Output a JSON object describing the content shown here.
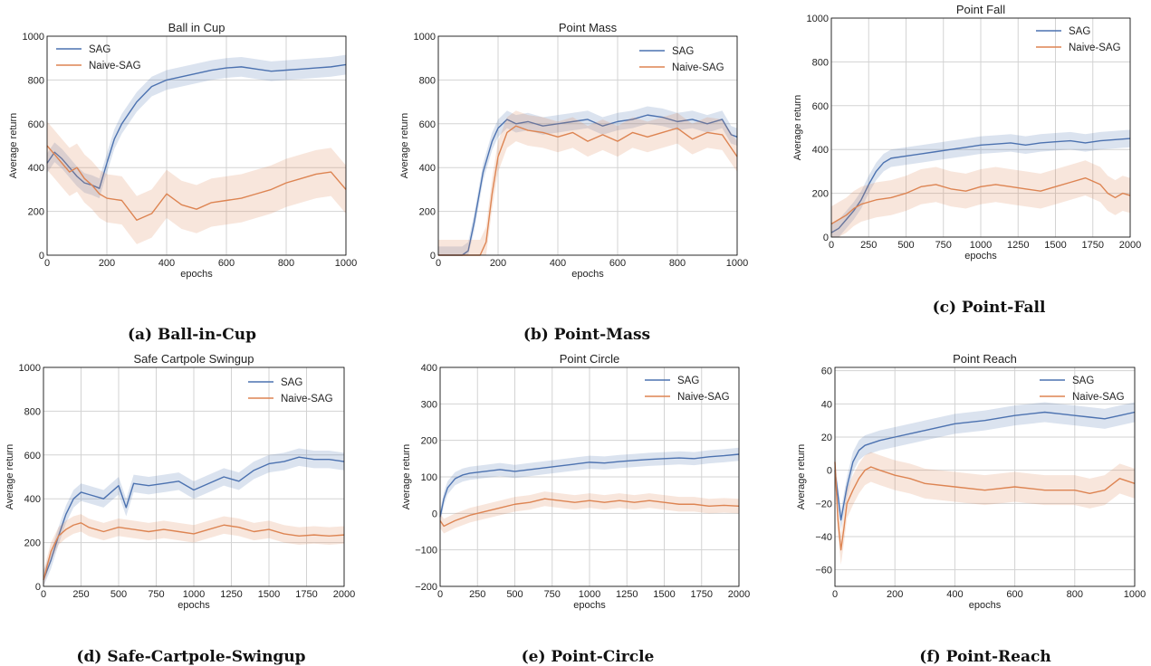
{
  "colors": {
    "sag": "#4c72b0",
    "naive_sag": "#dd8452"
  },
  "captions": [
    "(a) Ball-in-Cup",
    "(b) Point-Mass",
    "(c) Point-Fall",
    "(d) Safe-Cartpole-Swingup",
    "(e) Point-Circle",
    "(f) Point-Reach"
  ],
  "chart_data": [
    {
      "type": "line",
      "title": "Ball in Cup",
      "xlabel": "epochs",
      "ylabel": "Average return",
      "xlim": [
        0,
        1000
      ],
      "ylim": [
        0,
        1000
      ],
      "xticks": [
        0,
        200,
        400,
        600,
        800,
        1000
      ],
      "yticks": [
        0,
        200,
        400,
        600,
        800,
        1000
      ],
      "grid": true,
      "legend": "top-left",
      "series": [
        {
          "name": "SAG",
          "band": 45,
          "x": [
            0,
            25,
            50,
            75,
            100,
            125,
            150,
            175,
            200,
            225,
            250,
            275,
            300,
            350,
            400,
            450,
            500,
            550,
            600,
            650,
            700,
            750,
            800,
            850,
            900,
            950,
            1000
          ],
          "y": [
            420,
            470,
            440,
            400,
            360,
            330,
            320,
            305,
            420,
            530,
            600,
            650,
            700,
            770,
            800,
            815,
            830,
            845,
            855,
            860,
            850,
            840,
            845,
            850,
            855,
            860,
            870
          ]
        },
        {
          "name": "Naive-SAG",
          "band": 110,
          "x": [
            0,
            25,
            50,
            75,
            100,
            125,
            150,
            175,
            200,
            250,
            300,
            350,
            400,
            450,
            500,
            550,
            600,
            650,
            700,
            750,
            800,
            850,
            900,
            950,
            1000
          ],
          "y": [
            500,
            460,
            420,
            380,
            400,
            350,
            320,
            280,
            260,
            250,
            160,
            190,
            280,
            230,
            210,
            240,
            250,
            260,
            280,
            300,
            330,
            350,
            370,
            380,
            300
          ]
        }
      ]
    },
    {
      "type": "line",
      "title": "Point Mass",
      "xlabel": "epochs",
      "ylabel": "Average return",
      "xlim": [
        0,
        1000
      ],
      "ylim": [
        0,
        1000
      ],
      "xticks": [
        0,
        200,
        400,
        600,
        800,
        1000
      ],
      "yticks": [
        0,
        200,
        400,
        600,
        800,
        1000
      ],
      "grid": true,
      "legend": "top-right",
      "series": [
        {
          "name": "SAG",
          "band": 40,
          "x": [
            0,
            80,
            100,
            120,
            150,
            180,
            200,
            230,
            260,
            300,
            350,
            400,
            450,
            500,
            550,
            600,
            650,
            700,
            750,
            800,
            850,
            900,
            950,
            980,
            1000
          ],
          "y": [
            0,
            0,
            20,
            150,
            380,
            520,
            580,
            620,
            600,
            610,
            590,
            600,
            610,
            620,
            590,
            610,
            620,
            640,
            630,
            610,
            620,
            600,
            620,
            550,
            540
          ]
        },
        {
          "name": "Naive-SAG",
          "band": 70,
          "x": [
            0,
            140,
            160,
            180,
            200,
            230,
            260,
            300,
            350,
            400,
            450,
            500,
            550,
            600,
            650,
            700,
            750,
            800,
            850,
            900,
            950,
            1000
          ],
          "y": [
            0,
            0,
            60,
            280,
            450,
            560,
            590,
            570,
            560,
            540,
            560,
            520,
            550,
            520,
            560,
            540,
            560,
            580,
            530,
            560,
            550,
            450
          ]
        }
      ]
    },
    {
      "type": "line",
      "title": "Point Fall",
      "xlabel": "epochs",
      "ylabel": "Average return",
      "xlim": [
        0,
        2000
      ],
      "ylim": [
        0,
        1000
      ],
      "xticks": [
        0,
        250,
        500,
        750,
        1000,
        1250,
        1500,
        1750,
        2000
      ],
      "yticks": [
        0,
        200,
        400,
        600,
        800,
        1000
      ],
      "grid": true,
      "legend": "top-right",
      "series": [
        {
          "name": "SAG",
          "band": 40,
          "x": [
            0,
            50,
            100,
            150,
            200,
            250,
            300,
            350,
            400,
            500,
            600,
            700,
            800,
            900,
            1000,
            1100,
            1200,
            1300,
            1400,
            1500,
            1600,
            1700,
            1800,
            1900,
            2000
          ],
          "y": [
            20,
            40,
            80,
            120,
            170,
            240,
            300,
            340,
            360,
            370,
            380,
            390,
            400,
            410,
            420,
            425,
            430,
            420,
            430,
            435,
            440,
            430,
            440,
            445,
            450
          ]
        },
        {
          "name": "Naive-SAG",
          "band": 80,
          "x": [
            0,
            50,
            100,
            150,
            200,
            300,
            400,
            500,
            600,
            700,
            800,
            900,
            1000,
            1100,
            1200,
            1300,
            1400,
            1500,
            1600,
            1700,
            1800,
            1850,
            1900,
            1950,
            2000
          ],
          "y": [
            60,
            80,
            100,
            130,
            150,
            170,
            180,
            200,
            230,
            240,
            220,
            210,
            230,
            240,
            230,
            220,
            210,
            230,
            250,
            270,
            240,
            200,
            180,
            200,
            190
          ]
        }
      ]
    },
    {
      "type": "line",
      "title": "Safe Cartpole Swingup",
      "xlabel": "epochs",
      "ylabel": "Average return",
      "xlim": [
        0,
        2000
      ],
      "ylim": [
        0,
        1000
      ],
      "xticks": [
        0,
        250,
        500,
        750,
        1000,
        1250,
        1500,
        1750,
        2000
      ],
      "yticks": [
        0,
        200,
        400,
        600,
        800,
        1000
      ],
      "grid": true,
      "legend": "top-right",
      "series": [
        {
          "name": "SAG",
          "band": 40,
          "x": [
            0,
            50,
            100,
            150,
            200,
            250,
            300,
            400,
            500,
            550,
            600,
            700,
            800,
            900,
            1000,
            1100,
            1200,
            1300,
            1400,
            1500,
            1600,
            1700,
            1800,
            1900,
            2000
          ],
          "y": [
            30,
            120,
            230,
            330,
            400,
            430,
            420,
            400,
            460,
            360,
            470,
            460,
            470,
            480,
            440,
            470,
            500,
            480,
            530,
            560,
            570,
            590,
            580,
            580,
            570
          ]
        },
        {
          "name": "Naive-SAG",
          "band": 40,
          "x": [
            0,
            50,
            100,
            150,
            200,
            250,
            300,
            400,
            500,
            600,
            700,
            800,
            900,
            1000,
            1100,
            1200,
            1300,
            1400,
            1500,
            1600,
            1700,
            1800,
            1900,
            2000
          ],
          "y": [
            30,
            160,
            230,
            260,
            280,
            290,
            270,
            250,
            270,
            260,
            250,
            260,
            250,
            240,
            260,
            280,
            270,
            250,
            260,
            240,
            230,
            235,
            230,
            235
          ]
        }
      ]
    },
    {
      "type": "line",
      "title": "Point Circle",
      "xlabel": "epochs",
      "ylabel": "Average return",
      "xlim": [
        0,
        2000
      ],
      "ylim": [
        -200,
        400
      ],
      "xticks": [
        0,
        250,
        500,
        750,
        1000,
        1250,
        1500,
        1750,
        2000
      ],
      "yticks": [
        -200,
        -100,
        0,
        100,
        200,
        300,
        400
      ],
      "grid": true,
      "legend": "top-right",
      "series": [
        {
          "name": "SAG",
          "band": 18,
          "x": [
            0,
            25,
            50,
            100,
            150,
            200,
            300,
            400,
            500,
            600,
            700,
            800,
            900,
            1000,
            1100,
            1200,
            1300,
            1400,
            1500,
            1600,
            1700,
            1800,
            1900,
            2000
          ],
          "y": [
            -10,
            40,
            70,
            95,
            105,
            110,
            115,
            120,
            115,
            120,
            125,
            130,
            135,
            140,
            138,
            142,
            145,
            148,
            150,
            152,
            150,
            155,
            158,
            162
          ]
        },
        {
          "name": "Naive-SAG",
          "band": 20,
          "x": [
            0,
            25,
            50,
            100,
            200,
            300,
            400,
            500,
            600,
            700,
            800,
            900,
            1000,
            1100,
            1200,
            1300,
            1400,
            1500,
            1600,
            1700,
            1800,
            1900,
            2000
          ],
          "y": [
            -20,
            -35,
            -30,
            -20,
            -5,
            5,
            15,
            25,
            30,
            40,
            35,
            30,
            35,
            30,
            35,
            30,
            35,
            30,
            25,
            25,
            20,
            22,
            20
          ]
        }
      ]
    },
    {
      "type": "line",
      "title": "Point Reach",
      "xlabel": "epochs",
      "ylabel": "Average return",
      "xlim": [
        0,
        1000
      ],
      "ylim": [
        -70,
        62
      ],
      "xticks": [
        0,
        200,
        400,
        600,
        800,
        1000
      ],
      "yticks": [
        -60,
        -40,
        -20,
        0,
        20,
        40,
        60
      ],
      "grid": true,
      "legend": "top-right",
      "series": [
        {
          "name": "SAG",
          "band": 6,
          "x": [
            0,
            10,
            20,
            40,
            60,
            80,
            100,
            150,
            200,
            300,
            400,
            500,
            600,
            700,
            750,
            800,
            850,
            900,
            950,
            1000
          ],
          "y": [
            0,
            -15,
            -30,
            -10,
            5,
            12,
            15,
            18,
            20,
            24,
            28,
            30,
            33,
            35,
            34,
            33,
            32,
            31,
            33,
            35
          ]
        },
        {
          "name": "Naive-SAG",
          "band": 9,
          "x": [
            0,
            10,
            20,
            30,
            40,
            60,
            80,
            100,
            120,
            150,
            200,
            250,
            300,
            400,
            500,
            600,
            700,
            800,
            850,
            900,
            950,
            1000
          ],
          "y": [
            5,
            -30,
            -48,
            -35,
            -20,
            -12,
            -5,
            0,
            2,
            0,
            -3,
            -5,
            -8,
            -10,
            -12,
            -10,
            -12,
            -12,
            -14,
            -12,
            -5,
            -8
          ]
        }
      ]
    }
  ]
}
